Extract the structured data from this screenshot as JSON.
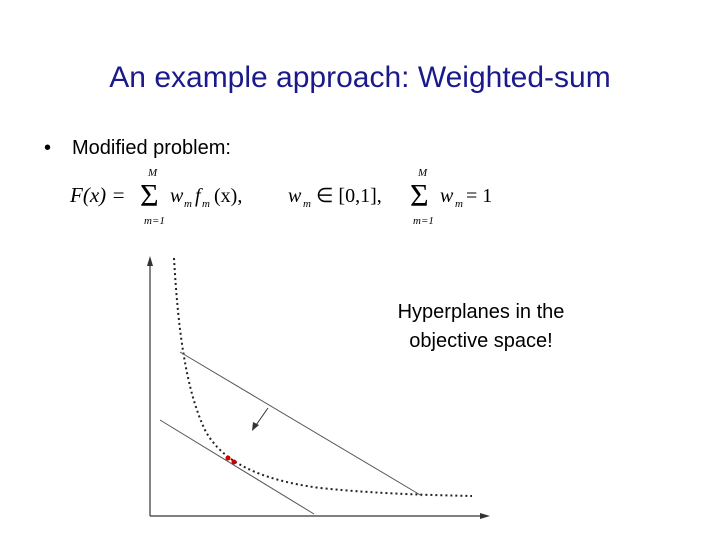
{
  "slide": {
    "title": "An example approach: Weighted-sum",
    "bullet": "•",
    "bullet_text": "Modified problem:",
    "formula": [
      "F(x) =",
      "M",
      "Σ",
      "m=1",
      "w",
      "m",
      "f",
      "m",
      "(x),",
      "w",
      "m",
      "∈ [0,1],",
      "M",
      "Σ",
      "m=1",
      "w",
      "m",
      "= 1"
    ],
    "callout": [
      "Hyperplanes in the",
      "objective space!"
    ]
  }
}
